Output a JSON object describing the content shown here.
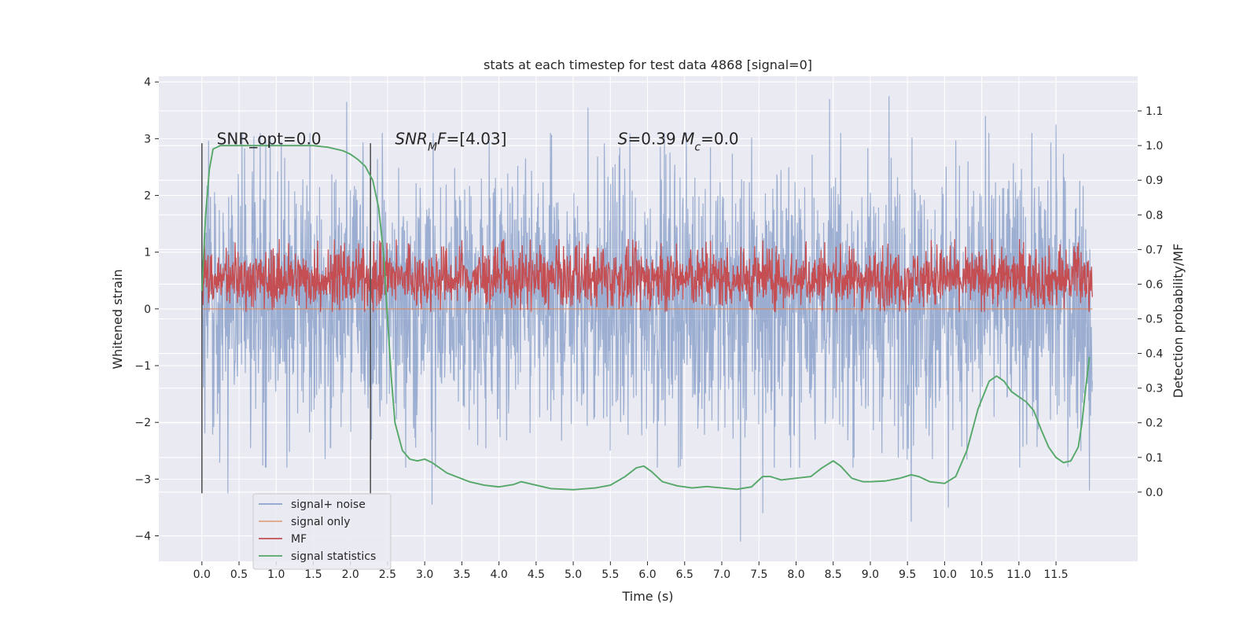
{
  "chart_data": {
    "type": "line",
    "title": "stats at each timestep for test data 4868 [signal=0]",
    "xlabel": "Time (s)",
    "ylabel_left": "Whitened strain",
    "ylabel_right": "Detection probability/MF",
    "xlim": [
      -0.58,
      12.6
    ],
    "ylim_left": [
      -4.45,
      4.1
    ],
    "ylim_right": [
      -0.2,
      1.2
    ],
    "x_ticks": [
      0.0,
      0.5,
      1.0,
      1.5,
      2.0,
      2.5,
      3.0,
      3.5,
      4.0,
      4.5,
      5.0,
      5.5,
      6.0,
      6.5,
      7.0,
      7.5,
      8.0,
      8.5,
      9.0,
      9.5,
      10.0,
      10.5,
      11.0,
      11.5
    ],
    "x_tick_labels": [
      "0.0",
      "0.5",
      "1.0",
      "1.5",
      "2.0",
      "2.5",
      "3.0",
      "3.5",
      "4.0",
      "4.5",
      "5.0",
      "5.5",
      "6.0",
      "6.5",
      "7.0",
      "7.5",
      "8.0",
      "8.5",
      "9.0",
      "9.5",
      "10.0",
      "10.5",
      "11.0",
      "11.5"
    ],
    "y_left_ticks": [
      -4,
      -3,
      -2,
      -1,
      0,
      1,
      2,
      3,
      4
    ],
    "y_left_tick_labels": [
      "−4",
      "−3",
      "−2",
      "−1",
      "0",
      "1",
      "2",
      "3",
      "4"
    ],
    "y_right_ticks": [
      0.0,
      0.1,
      0.2,
      0.3,
      0.4,
      0.5,
      0.6,
      0.7,
      0.8,
      0.9,
      1.0,
      1.1
    ],
    "y_right_tick_labels": [
      "0.0",
      "0.1",
      "0.2",
      "0.3",
      "0.4",
      "0.5",
      "0.6",
      "0.7",
      "0.8",
      "0.9",
      "1.0",
      "1.1"
    ],
    "grid": true,
    "legend_position": "lower-left",
    "series": [
      {
        "name": "signal+ noise",
        "axis": "left",
        "color": "#4c72b0",
        "opacity": 0.5,
        "x_range": [
          0.0,
          11.99
        ],
        "typical_range": [
          -2.0,
          2.3
        ],
        "extremes": [
          {
            "x": 0.35,
            "y": -3.25
          },
          {
            "x": 0.92,
            "y": 3.05
          },
          {
            "x": 1.95,
            "y": 3.65
          },
          {
            "x": 3.1,
            "y": -3.45
          },
          {
            "x": 5.2,
            "y": 3.55
          },
          {
            "x": 7.25,
            "y": -4.1
          },
          {
            "x": 7.55,
            "y": -3.6
          },
          {
            "x": 8.45,
            "y": 3.7
          },
          {
            "x": 9.25,
            "y": 3.75
          },
          {
            "x": 9.55,
            "y": -3.75
          },
          {
            "x": 10.05,
            "y": -3.5
          },
          {
            "x": 10.55,
            "y": 3.4
          },
          {
            "x": 11.5,
            "y": 3.25
          },
          {
            "x": 11.95,
            "y": -3.2
          }
        ]
      },
      {
        "name": "signal only",
        "axis": "left",
        "color": "#dd8452",
        "x_range": [
          0.0,
          11.99
        ],
        "y": 0.0
      },
      {
        "name": "MF",
        "axis": "right",
        "color": "#c44e52",
        "x_range": [
          0.0,
          11.99
        ],
        "typical_range": [
          0.54,
          0.69
        ],
        "min": 0.52,
        "max": 0.73
      },
      {
        "name": "signal statistics",
        "axis": "right",
        "color": "#55a868",
        "x": [
          0.0,
          0.05,
          0.1,
          0.15,
          0.25,
          0.5,
          1.0,
          1.5,
          1.7,
          1.9,
          2.0,
          2.1,
          2.2,
          2.3,
          2.38,
          2.45,
          2.5,
          2.55,
          2.6,
          2.7,
          2.8,
          2.9,
          3.0,
          3.1,
          3.3,
          3.6,
          3.8,
          4.0,
          4.2,
          4.3,
          4.5,
          4.7,
          5.0,
          5.3,
          5.5,
          5.7,
          5.85,
          5.95,
          6.05,
          6.2,
          6.4,
          6.6,
          6.8,
          7.0,
          7.2,
          7.4,
          7.55,
          7.65,
          7.8,
          8.0,
          8.2,
          8.35,
          8.5,
          8.6,
          8.75,
          8.9,
          9.0,
          9.2,
          9.4,
          9.55,
          9.65,
          9.8,
          10.0,
          10.15,
          10.3,
          10.45,
          10.6,
          10.7,
          10.8,
          10.9,
          11.0,
          11.1,
          11.2,
          11.3,
          11.4,
          11.5,
          11.6,
          11.7,
          11.8,
          11.85,
          11.9,
          11.95
        ],
        "y": [
          0.58,
          0.8,
          0.93,
          0.99,
          1.0,
          1.0,
          1.0,
          1.0,
          0.995,
          0.985,
          0.975,
          0.96,
          0.94,
          0.9,
          0.82,
          0.68,
          0.5,
          0.33,
          0.2,
          0.12,
          0.095,
          0.09,
          0.095,
          0.085,
          0.055,
          0.03,
          0.02,
          0.015,
          0.022,
          0.03,
          0.02,
          0.01,
          0.007,
          0.012,
          0.02,
          0.045,
          0.07,
          0.075,
          0.06,
          0.03,
          0.018,
          0.012,
          0.016,
          0.012,
          0.008,
          0.015,
          0.045,
          0.045,
          0.035,
          0.04,
          0.045,
          0.07,
          0.09,
          0.075,
          0.04,
          0.03,
          0.03,
          0.032,
          0.04,
          0.05,
          0.045,
          0.03,
          0.025,
          0.045,
          0.12,
          0.24,
          0.32,
          0.335,
          0.32,
          0.29,
          0.275,
          0.26,
          0.235,
          0.18,
          0.13,
          0.1,
          0.085,
          0.09,
          0.13,
          0.2,
          0.3,
          0.39
        ]
      }
    ],
    "vertical_markers": [
      {
        "x": 0.0,
        "y_top": 2.92,
        "y_bottom": -3.25
      },
      {
        "x": 2.27,
        "y_top": 2.92,
        "y_bottom": -3.25
      }
    ],
    "annotations": [
      {
        "x": 0.2,
        "y": 3.0,
        "text": "SNR_opt=0.0"
      },
      {
        "x": 2.6,
        "y": 3.0,
        "text_parts": [
          {
            "t": "SNR",
            "italic": true
          },
          {
            "t": "M",
            "italic": true,
            "sub": true
          },
          {
            "t": "F",
            "italic": true
          },
          {
            "t": "=[4.03]",
            "italic": false
          }
        ]
      },
      {
        "x": 5.6,
        "y": 3.0,
        "text_parts": [
          {
            "t": "S",
            "italic": true
          },
          {
            "t": "=0.39   ",
            "italic": false
          },
          {
            "t": "M",
            "italic": true
          },
          {
            "t": "c",
            "italic": true,
            "sub": true
          },
          {
            "t": "=0.0",
            "italic": false
          }
        ]
      }
    ]
  },
  "colors": {
    "axes_background": "#eaeaf2",
    "grid": "#ffffff",
    "text": "#262626",
    "marker_line": "#555555"
  }
}
